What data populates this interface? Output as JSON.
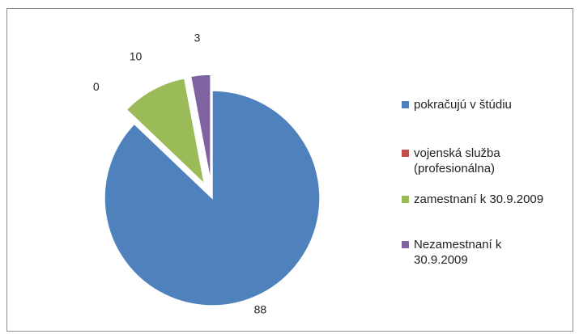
{
  "chart_data": {
    "type": "pie",
    "categories": [
      "pokračujú v štúdiu",
      "vojenská služba (profesionálna)",
      "zamestnaní k 30.9.2009",
      "Nezamestnaní k 30.9.2009"
    ],
    "values": [
      88,
      0,
      10,
      3
    ],
    "colors": [
      "#4f81bd",
      "#c0504d",
      "#9bbb59",
      "#8064a2"
    ],
    "exploded": [
      false,
      true,
      true,
      true
    ],
    "legend": "right"
  }
}
